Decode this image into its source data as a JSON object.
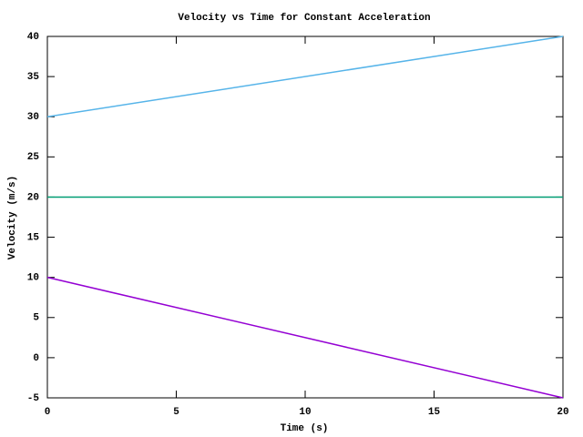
{
  "chart_data": {
    "type": "line",
    "title": "Velocity vs Time for Constant Acceleration",
    "x_label": "Time (s)",
    "y_label": "Velocity (m/s)",
    "x": [
      0,
      20
    ],
    "series": [
      {
        "color": "#56b4e9",
        "values": [
          30,
          40
        ]
      },
      {
        "color": "#009e73",
        "values": [
          20,
          20
        ]
      },
      {
        "color": "#9400d3",
        "values": [
          10,
          -5
        ]
      }
    ],
    "xlim": [
      0,
      20
    ],
    "xticks": [
      0,
      5,
      10,
      15,
      20
    ],
    "ylim": [
      -5,
      40
    ],
    "yticks": [
      -5,
      0,
      5,
      10,
      15,
      20,
      25,
      30,
      35,
      40
    ],
    "grid": false
  }
}
